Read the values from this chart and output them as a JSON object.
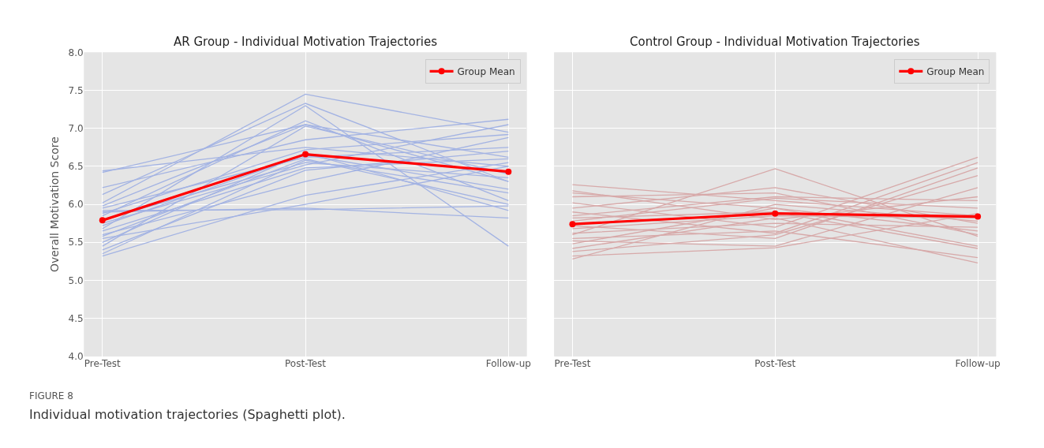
{
  "chart_data": [
    {
      "type": "line",
      "title": "AR Group - Individual Motivation Trajectories",
      "ylabel": "Overall Motivation Score",
      "categories": [
        "Pre-Test",
        "Post-Test",
        "Follow-up"
      ],
      "ylim": [
        4.0,
        8.0
      ],
      "yticks": [
        {
          "value": 4,
          "label": "4.0"
        },
        {
          "value": 4.5,
          "label": "4.5"
        },
        {
          "value": 5,
          "label": "5.0"
        },
        {
          "value": 5.5,
          "label": "5.5"
        },
        {
          "value": 6,
          "label": "6.0"
        },
        {
          "value": 6.5,
          "label": "6.5"
        },
        {
          "value": 7,
          "label": "7.0"
        },
        {
          "value": 7.5,
          "label": "7.5"
        },
        {
          "value": 8,
          "label": "8.0"
        }
      ],
      "grid": true,
      "legend": "top right",
      "annotations": [
        "FIGURE 8",
        "Individual motivation trajectories (Spaghetti plot)."
      ],
      "series": [
        {
          "color": "#a3b3e3",
          "values": [
            6.44,
            6.75,
            6.5
          ]
        },
        {
          "color": "#a3b3e3",
          "values": [
            6.42,
            7.05,
            6.3
          ]
        },
        {
          "color": "#a3b3e3",
          "values": [
            6.22,
            6.85,
            7.12
          ]
        },
        {
          "color": "#a3b3e3",
          "values": [
            6.13,
            7.33,
            6.3
          ]
        },
        {
          "color": "#a3b3e3",
          "values": [
            6.02,
            7.45,
            6.95
          ]
        },
        {
          "color": "#a3b3e3",
          "values": [
            5.98,
            7.05,
            6.62
          ]
        },
        {
          "color": "#a3b3e3",
          "values": [
            5.95,
            6.62,
            6.75
          ]
        },
        {
          "color": "#a3b3e3",
          "values": [
            5.92,
            5.93,
            5.98
          ]
        },
        {
          "color": "#a3b3e3",
          "values": [
            5.9,
            5.95,
            5.82
          ]
        },
        {
          "color": "#a3b3e3",
          "values": [
            5.88,
            6.72,
            6.92
          ]
        },
        {
          "color": "#a3b3e3",
          "values": [
            5.85,
            7.1,
            6.05
          ]
        },
        {
          "color": "#a3b3e3",
          "values": [
            5.8,
            6.55,
            6.35
          ]
        },
        {
          "color": "#a3b3e3",
          "values": [
            5.75,
            6.52,
            7.05
          ]
        },
        {
          "color": "#a3b3e3",
          "values": [
            5.72,
            6.65,
            6.2
          ]
        },
        {
          "color": "#a3b3e3",
          "values": [
            5.68,
            7.3,
            5.45
          ]
        },
        {
          "color": "#a3b3e3",
          "values": [
            5.65,
            6.48,
            6.6
          ]
        },
        {
          "color": "#a3b3e3",
          "values": [
            5.6,
            6.3,
            6.88
          ]
        },
        {
          "color": "#a3b3e3",
          "values": [
            5.58,
            6.6,
            6.0
          ]
        },
        {
          "color": "#a3b3e3",
          "values": [
            5.55,
            6.0,
            6.5
          ]
        },
        {
          "color": "#a3b3e3",
          "values": [
            5.5,
            6.68,
            5.92
          ]
        },
        {
          "color": "#a3b3e3",
          "values": [
            5.45,
            7.03,
            6.4
          ]
        },
        {
          "color": "#a3b3e3",
          "values": [
            5.4,
            6.45,
            6.7
          ]
        },
        {
          "color": "#a3b3e3",
          "values": [
            5.35,
            6.58,
            6.15
          ]
        },
        {
          "color": "#a3b3e3",
          "values": [
            5.32,
            6.12,
            6.55
          ]
        },
        {
          "name": "Group Mean",
          "color": "#ff0000",
          "marker": "circle",
          "values": [
            5.79,
            6.66,
            6.43
          ]
        }
      ]
    },
    {
      "type": "line",
      "title": "Control Group - Individual Motivation Trajectories",
      "categories": [
        "Pre-Test",
        "Post-Test",
        "Follow-up"
      ],
      "ylim": [
        4.0,
        8.0
      ],
      "yticks": [
        {
          "value": 4,
          "label": null
        },
        {
          "value": 4.5,
          "label": null
        },
        {
          "value": 5,
          "label": null
        },
        {
          "value": 5.5,
          "label": null
        },
        {
          "value": 6,
          "label": null
        },
        {
          "value": 6.5,
          "label": null
        },
        {
          "value": 7,
          "label": null
        },
        {
          "value": 7.5,
          "label": null
        },
        {
          "value": 8,
          "label": null
        }
      ],
      "grid": true,
      "legend": "top right",
      "tick_labels": "x",
      "series": [
        {
          "color": "#d7a9a9",
          "values": [
            6.26,
            6.05,
            5.85
          ]
        },
        {
          "color": "#d7a9a9",
          "values": [
            6.18,
            5.8,
            6.1
          ]
        },
        {
          "color": "#d7a9a9",
          "values": [
            6.15,
            5.95,
            5.45
          ]
        },
        {
          "color": "#d7a9a9",
          "values": [
            6.1,
            6.15,
            5.6
          ]
        },
        {
          "color": "#d7a9a9",
          "values": [
            6.02,
            5.7,
            6.62
          ]
        },
        {
          "color": "#d7a9a9",
          "values": [
            5.95,
            6.22,
            5.75
          ]
        },
        {
          "color": "#d7a9a9",
          "values": [
            5.9,
            5.62,
            6.55
          ]
        },
        {
          "color": "#d7a9a9",
          "values": [
            5.85,
            6.1,
            6.05
          ]
        },
        {
          "color": "#d7a9a9",
          "values": [
            5.82,
            5.9,
            5.42
          ]
        },
        {
          "color": "#d7a9a9",
          "values": [
            5.78,
            6.08,
            5.95
          ]
        },
        {
          "color": "#d7a9a9",
          "values": [
            5.72,
            5.55,
            6.48
          ]
        },
        {
          "color": "#d7a9a9",
          "values": [
            5.68,
            5.85,
            5.82
          ]
        },
        {
          "color": "#d7a9a9",
          "values": [
            5.62,
            5.75,
            5.7
          ]
        },
        {
          "color": "#d7a9a9",
          "values": [
            5.6,
            6.47,
            5.58
          ]
        },
        {
          "color": "#d7a9a9",
          "values": [
            5.55,
            5.65,
            5.3
          ]
        },
        {
          "color": "#d7a9a9",
          "values": [
            5.52,
            5.45,
            6.22
          ]
        },
        {
          "color": "#d7a9a9",
          "values": [
            5.48,
            5.95,
            5.65
          ]
        },
        {
          "color": "#d7a9a9",
          "values": [
            5.42,
            5.82,
            5.23
          ]
        },
        {
          "color": "#d7a9a9",
          "values": [
            5.38,
            5.6,
            6.38
          ]
        },
        {
          "color": "#d7a9a9",
          "values": [
            5.32,
            5.43,
            5.88
          ]
        },
        {
          "color": "#d7a9a9",
          "values": [
            5.28,
            6.0,
            5.78
          ]
        },
        {
          "name": "Group Mean",
          "color": "#ff0000",
          "marker": "circle",
          "values": [
            5.74,
            5.88,
            5.84
          ]
        }
      ]
    }
  ]
}
